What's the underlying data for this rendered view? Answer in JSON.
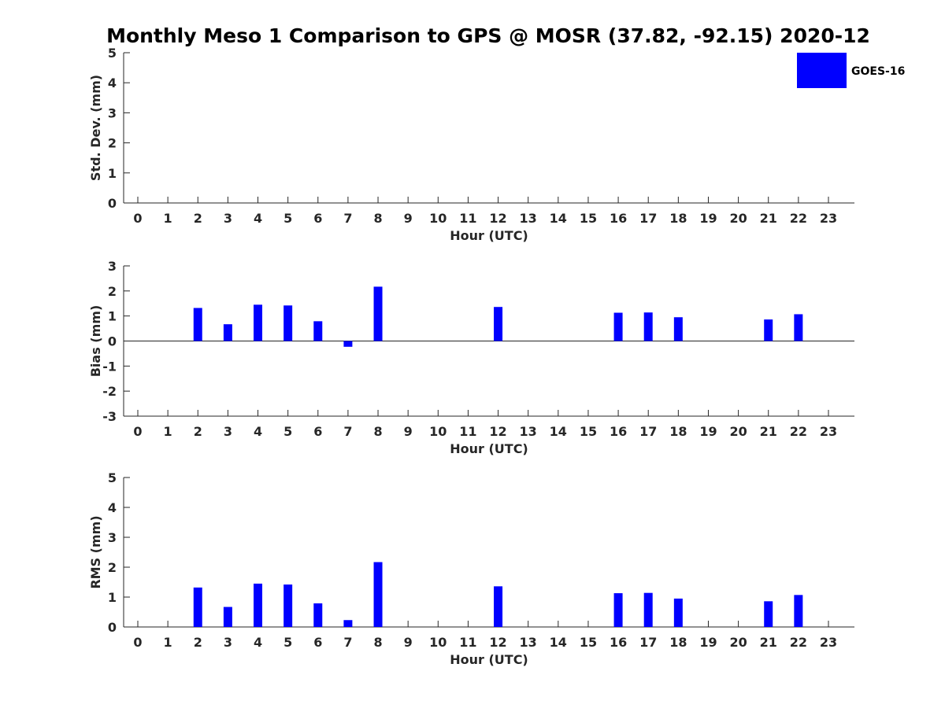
{
  "title": "Monthly Meso 1 Comparison to GPS @ MOSR (37.82, -92.15) 2020-12",
  "legend": {
    "label": "GOES-16",
    "color": "#0000ff",
    "placement": "top-right"
  },
  "bar_color": "#0000ff",
  "chart_data": [
    {
      "type": "bar",
      "name": "std",
      "categories": [
        "0",
        "1",
        "2",
        "3",
        "4",
        "5",
        "6",
        "7",
        "8",
        "9",
        "10",
        "11",
        "12",
        "13",
        "14",
        "15",
        "16",
        "17",
        "18",
        "19",
        "20",
        "21",
        "22",
        "23"
      ],
      "values": [
        null,
        null,
        null,
        null,
        null,
        null,
        null,
        null,
        null,
        null,
        null,
        null,
        null,
        null,
        null,
        null,
        null,
        null,
        null,
        null,
        null,
        null,
        null,
        null
      ],
      "xlabel": "Hour (UTC)",
      "ylabel": "Std. Dev. (mm)",
      "ylim": [
        0,
        5
      ],
      "yticks": [
        "0",
        "1",
        "2",
        "3",
        "4",
        "5"
      ],
      "grid": false
    },
    {
      "type": "bar",
      "name": "bias",
      "categories": [
        "0",
        "1",
        "2",
        "3",
        "4",
        "5",
        "6",
        "7",
        "8",
        "9",
        "10",
        "11",
        "12",
        "13",
        "14",
        "15",
        "16",
        "17",
        "18",
        "19",
        "20",
        "21",
        "22",
        "23"
      ],
      "values": [
        null,
        null,
        1.32,
        0.67,
        1.45,
        1.42,
        0.79,
        -0.23,
        2.17,
        null,
        null,
        null,
        1.36,
        null,
        null,
        null,
        1.13,
        1.14,
        0.95,
        null,
        null,
        0.86,
        1.07,
        null
      ],
      "xlabel": "Hour (UTC)",
      "ylabel": "Bias (mm)",
      "ylim": [
        -3,
        3
      ],
      "yticks": [
        "-3",
        "-2",
        "-1",
        "0",
        "1",
        "2",
        "3"
      ],
      "grid": false
    },
    {
      "type": "bar",
      "name": "rms",
      "categories": [
        "0",
        "1",
        "2",
        "3",
        "4",
        "5",
        "6",
        "7",
        "8",
        "9",
        "10",
        "11",
        "12",
        "13",
        "14",
        "15",
        "16",
        "17",
        "18",
        "19",
        "20",
        "21",
        "22",
        "23"
      ],
      "values": [
        null,
        null,
        1.32,
        0.67,
        1.45,
        1.42,
        0.79,
        0.23,
        2.17,
        null,
        null,
        null,
        1.36,
        null,
        null,
        null,
        1.13,
        1.14,
        0.95,
        null,
        null,
        0.86,
        1.07,
        null
      ],
      "xlabel": "Hour (UTC)",
      "ylabel": "RMS (mm)",
      "ylim": [
        0,
        5
      ],
      "yticks": [
        "0",
        "1",
        "2",
        "3",
        "4",
        "5"
      ],
      "grid": false
    }
  ]
}
